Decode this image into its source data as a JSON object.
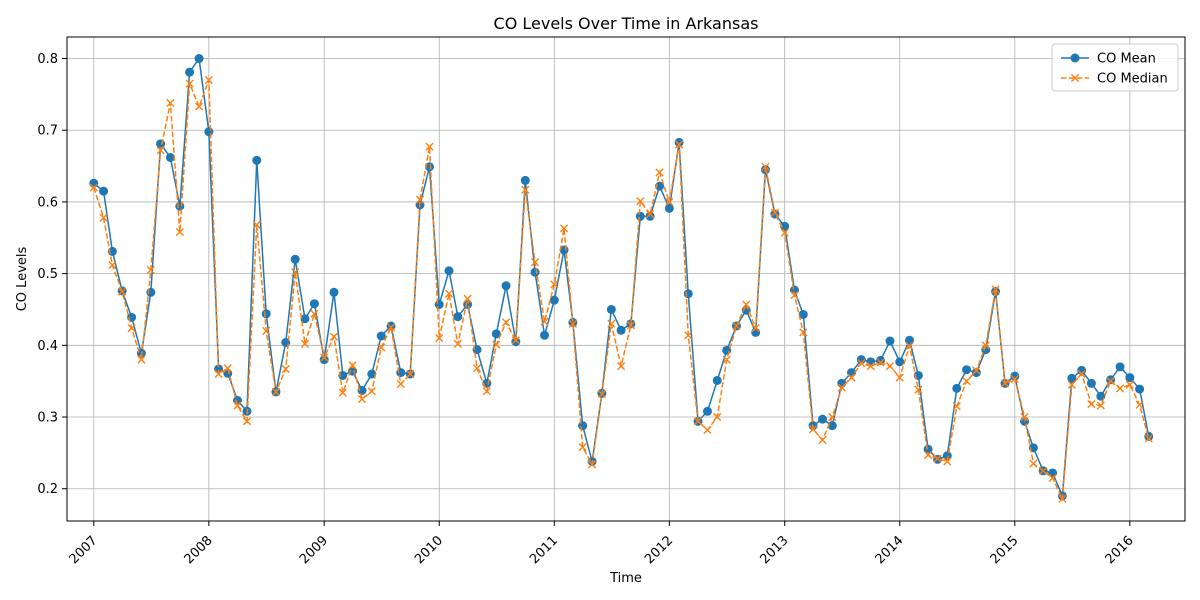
{
  "chart_data": {
    "type": "line",
    "title": "CO Levels Over Time in Arkansas",
    "xlabel": "Time",
    "ylabel": "CO Levels",
    "x_ticks": [
      "2007",
      "2008",
      "2009",
      "2010",
      "2011",
      "2012",
      "2013",
      "2014",
      "2015",
      "2016"
    ],
    "y_ticks": [
      "0.2",
      "0.3",
      "0.4",
      "0.5",
      "0.6",
      "0.7",
      "0.8"
    ],
    "ylim": [
      0.155,
      0.83
    ],
    "xlim": [
      "2006-10-08",
      "2016-06-24"
    ],
    "grid": true,
    "legend_position": "top-right",
    "x": [
      "2007-01",
      "2007-02",
      "2007-03",
      "2007-04",
      "2007-05",
      "2007-06",
      "2007-07",
      "2007-08",
      "2007-09",
      "2007-10",
      "2007-11",
      "2007-12",
      "2008-01",
      "2008-02",
      "2008-03",
      "2008-04",
      "2008-05",
      "2008-06",
      "2008-07",
      "2008-08",
      "2008-09",
      "2008-10",
      "2008-11",
      "2008-12",
      "2009-01",
      "2009-02",
      "2009-03",
      "2009-04",
      "2009-05",
      "2009-06",
      "2009-07",
      "2009-08",
      "2009-09",
      "2009-10",
      "2009-11",
      "2009-12",
      "2010-01",
      "2010-02",
      "2010-03",
      "2010-04",
      "2010-05",
      "2010-06",
      "2010-07",
      "2010-08",
      "2010-09",
      "2010-10",
      "2010-11",
      "2010-12",
      "2011-01",
      "2011-02",
      "2011-03",
      "2011-04",
      "2011-05",
      "2011-06",
      "2011-07",
      "2011-08",
      "2011-09",
      "2011-10",
      "2011-11",
      "2011-12",
      "2012-01",
      "2012-02",
      "2012-03",
      "2012-04",
      "2012-05",
      "2012-06",
      "2012-07",
      "2012-08",
      "2012-09",
      "2012-10",
      "2012-11",
      "2012-12",
      "2013-01",
      "2013-02",
      "2013-03",
      "2013-04",
      "2013-05",
      "2013-06",
      "2013-07",
      "2013-08",
      "2013-09",
      "2013-10",
      "2013-11",
      "2013-12",
      "2014-01",
      "2014-02",
      "2014-03",
      "2014-04",
      "2014-05",
      "2014-06",
      "2014-07",
      "2014-08",
      "2014-09",
      "2014-10",
      "2014-11",
      "2014-12",
      "2015-01",
      "2015-02",
      "2015-03",
      "2015-04",
      "2015-05",
      "2015-06",
      "2015-07",
      "2015-08",
      "2015-09",
      "2015-10",
      "2015-11",
      "2015-12",
      "2016-01",
      "2016-02",
      "2016-03"
    ],
    "series": [
      {
        "name": "CO Mean",
        "color": "#1f77b4",
        "marker": "circle",
        "line_style": "solid",
        "values": [
          0.626,
          0.615,
          0.531,
          0.476,
          0.439,
          0.389,
          0.474,
          0.681,
          0.662,
          0.594,
          0.781,
          0.8,
          0.698,
          0.367,
          0.361,
          0.323,
          0.308,
          0.658,
          0.444,
          0.335,
          0.404,
          0.52,
          0.437,
          0.458,
          0.38,
          0.474,
          0.358,
          0.364,
          0.337,
          0.36,
          0.413,
          0.427,
          0.362,
          0.36,
          0.596,
          0.649,
          0.457,
          0.504,
          0.44,
          0.457,
          0.394,
          0.347,
          0.416,
          0.483,
          0.405,
          0.63,
          0.502,
          0.414,
          0.463,
          0.533,
          0.432,
          0.288,
          0.238,
          0.333,
          0.45,
          0.421,
          0.43,
          0.58,
          0.58,
          0.622,
          0.591,
          0.683,
          0.472,
          0.294,
          0.308,
          0.351,
          0.393,
          0.427,
          0.449,
          0.418,
          0.645,
          0.583,
          0.566,
          0.477,
          0.443,
          0.288,
          0.297,
          0.288,
          0.347,
          0.362,
          0.38,
          0.377,
          0.379,
          0.406,
          0.377,
          0.407,
          0.358,
          0.255,
          0.241,
          0.246,
          0.34,
          0.366,
          0.362,
          0.394,
          0.475,
          0.347,
          0.357,
          0.294,
          0.257,
          0.225,
          0.222,
          0.19,
          0.354,
          0.365,
          0.347,
          0.329,
          0.352,
          0.37,
          0.355,
          0.339,
          0.273
        ]
      },
      {
        "name": "CO Median",
        "color": "#ff7f0e",
        "marker": "x",
        "line_style": "dashed",
        "values": [
          0.62,
          0.578,
          0.512,
          0.475,
          0.424,
          0.38,
          0.505,
          0.672,
          0.738,
          0.558,
          0.765,
          0.733,
          0.77,
          0.36,
          0.368,
          0.316,
          0.294,
          0.568,
          0.42,
          0.335,
          0.367,
          0.502,
          0.402,
          0.444,
          0.383,
          0.412,
          0.334,
          0.372,
          0.325,
          0.336,
          0.397,
          0.425,
          0.346,
          0.36,
          0.603,
          0.677,
          0.41,
          0.472,
          0.402,
          0.465,
          0.368,
          0.336,
          0.401,
          0.432,
          0.407,
          0.617,
          0.516,
          0.433,
          0.485,
          0.563,
          0.43,
          0.258,
          0.234,
          0.332,
          0.43,
          0.371,
          0.428,
          0.601,
          0.583,
          0.641,
          0.6,
          0.68,
          0.414,
          0.294,
          0.282,
          0.3,
          0.38,
          0.427,
          0.457,
          0.424,
          0.649,
          0.585,
          0.557,
          0.47,
          0.418,
          0.283,
          0.268,
          0.3,
          0.341,
          0.355,
          0.375,
          0.371,
          0.376,
          0.371,
          0.355,
          0.399,
          0.338,
          0.247,
          0.242,
          0.238,
          0.315,
          0.35,
          0.365,
          0.4,
          0.478,
          0.347,
          0.353,
          0.3,
          0.235,
          0.225,
          0.215,
          0.186,
          0.345,
          0.36,
          0.318,
          0.316,
          0.35,
          0.34,
          0.345,
          0.317,
          0.27
        ]
      }
    ]
  }
}
